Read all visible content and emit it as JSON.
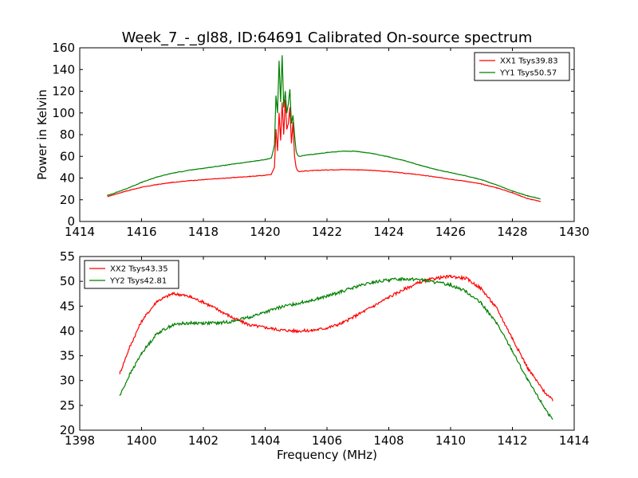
{
  "figure": {
    "title": "Week_7_-_gl88, ID:64691 Calibrated On-source spectrum"
  },
  "chart_data": [
    {
      "type": "line",
      "title": "Week_7_-_gl88, ID:64691 Calibrated On-source spectrum",
      "xlabel": "",
      "ylabel": "Power in Kelvin",
      "xlim": [
        1414,
        1430
      ],
      "ylim": [
        0,
        160
      ],
      "xticks": [
        "1414",
        "1416",
        "1418",
        "1420",
        "1422",
        "1424",
        "1426",
        "1428",
        "1430"
      ],
      "yticks": [
        "0",
        "20",
        "40",
        "60",
        "80",
        "100",
        "120",
        "140",
        "160"
      ],
      "grid": false,
      "legend_position": "top-right",
      "series": [
        {
          "name": "XX1 Tsys39.83",
          "color": "#ff0000",
          "x": [
            1414.9,
            1415.5,
            1416.0,
            1416.5,
            1417.0,
            1417.5,
            1418.0,
            1418.5,
            1419.0,
            1419.5,
            1420.0,
            1420.2,
            1420.3,
            1420.35,
            1420.4,
            1420.45,
            1420.5,
            1420.55,
            1420.6,
            1420.65,
            1420.7,
            1420.75,
            1420.8,
            1420.85,
            1420.9,
            1420.95,
            1421.0,
            1421.05,
            1421.1,
            1421.3,
            1421.6,
            1422.0,
            1422.5,
            1423.0,
            1423.5,
            1424.0,
            1424.5,
            1425.0,
            1425.5,
            1426.0,
            1426.5,
            1427.0,
            1427.5,
            1428.0,
            1428.5,
            1428.9
          ],
          "y": [
            23,
            28,
            31.5,
            34,
            36,
            37.5,
            38.5,
            39.5,
            40.5,
            41.5,
            42.5,
            43.5,
            50,
            85,
            65,
            100,
            75,
            110,
            80,
            112,
            85,
            90,
            105,
            72,
            92,
            60,
            50,
            47,
            46,
            46.5,
            47,
            47.5,
            47.8,
            47.6,
            47,
            46,
            44.5,
            43,
            41,
            39,
            37,
            34.5,
            31,
            26.5,
            21,
            18.5
          ]
        },
        {
          "name": "YY1 Tsys50.57",
          "color": "#008000",
          "x": [
            1414.9,
            1415.5,
            1416.0,
            1416.5,
            1417.0,
            1417.5,
            1418.0,
            1418.5,
            1419.0,
            1419.5,
            1420.0,
            1420.2,
            1420.3,
            1420.35,
            1420.4,
            1420.45,
            1420.5,
            1420.55,
            1420.6,
            1420.65,
            1420.7,
            1420.75,
            1420.8,
            1420.85,
            1420.9,
            1420.95,
            1421.0,
            1421.05,
            1421.1,
            1421.3,
            1421.6,
            1422.0,
            1422.5,
            1423.0,
            1423.5,
            1424.0,
            1424.5,
            1425.0,
            1425.5,
            1426.0,
            1426.5,
            1427.0,
            1427.5,
            1428.0,
            1428.5,
            1428.9
          ],
          "y": [
            24,
            30,
            36,
            41,
            44.5,
            47,
            49,
            51,
            53,
            55,
            57,
            58.5,
            70,
            116,
            100,
            148,
            110,
            153,
            105,
            120,
            100,
            108,
            122,
            90,
            98,
            80,
            65,
            61,
            60,
            61,
            62,
            63.5,
            64.8,
            64.5,
            62.5,
            59.5,
            56,
            52,
            48,
            45,
            42,
            38.5,
            33.5,
            28,
            23.5,
            21
          ]
        }
      ]
    },
    {
      "type": "line",
      "title": "",
      "xlabel": "Frequency (MHz)",
      "ylabel": "",
      "xlim": [
        1398,
        1414
      ],
      "ylim": [
        20,
        55
      ],
      "xticks": [
        "1398",
        "1400",
        "1402",
        "1404",
        "1406",
        "1408",
        "1410",
        "1412",
        "1414"
      ],
      "yticks": [
        "20",
        "25",
        "30",
        "35",
        "40",
        "45",
        "50",
        "55"
      ],
      "grid": false,
      "legend_position": "top-left",
      "series": [
        {
          "name": "XX2 Tsys43.35",
          "color": "#ff0000",
          "x": [
            1399.3,
            1399.6,
            1400.0,
            1400.5,
            1401.0,
            1401.3,
            1401.6,
            1402.0,
            1402.5,
            1403.0,
            1403.5,
            1404.0,
            1404.5,
            1405.0,
            1405.5,
            1406.0,
            1406.5,
            1407.0,
            1407.5,
            1408.0,
            1408.5,
            1409.0,
            1409.5,
            1410.0,
            1410.5,
            1411.0,
            1411.5,
            1412.0,
            1412.5,
            1413.0,
            1413.3
          ],
          "y": [
            31.5,
            36.5,
            42,
            46,
            47.5,
            47.3,
            46.8,
            45.8,
            44.2,
            42.5,
            41.2,
            40.7,
            40.2,
            40,
            40.1,
            40.6,
            41.6,
            43.3,
            45,
            46.8,
            48.4,
            49.8,
            50.6,
            51,
            50.6,
            48.5,
            44.5,
            38.5,
            32.5,
            28,
            26
          ]
        },
        {
          "name": "YY2 Tsys42.81",
          "color": "#008000",
          "x": [
            1399.3,
            1399.6,
            1400.0,
            1400.5,
            1401.0,
            1401.3,
            1401.6,
            1402.0,
            1402.5,
            1403.0,
            1403.5,
            1404.0,
            1404.5,
            1405.0,
            1405.5,
            1406.0,
            1406.5,
            1407.0,
            1407.5,
            1408.0,
            1408.5,
            1409.0,
            1409.5,
            1410.0,
            1410.5,
            1411.0,
            1411.5,
            1412.0,
            1412.5,
            1413.0,
            1413.3
          ],
          "y": [
            27,
            31,
            35.5,
            39.5,
            41.2,
            41.5,
            41.6,
            41.6,
            41.6,
            42,
            42.8,
            43.8,
            44.8,
            45.5,
            46.2,
            47,
            48,
            49,
            49.8,
            50.3,
            50.5,
            50.4,
            49.8,
            49.3,
            48,
            45.5,
            41.5,
            36,
            30,
            25,
            22
          ]
        }
      ]
    }
  ]
}
